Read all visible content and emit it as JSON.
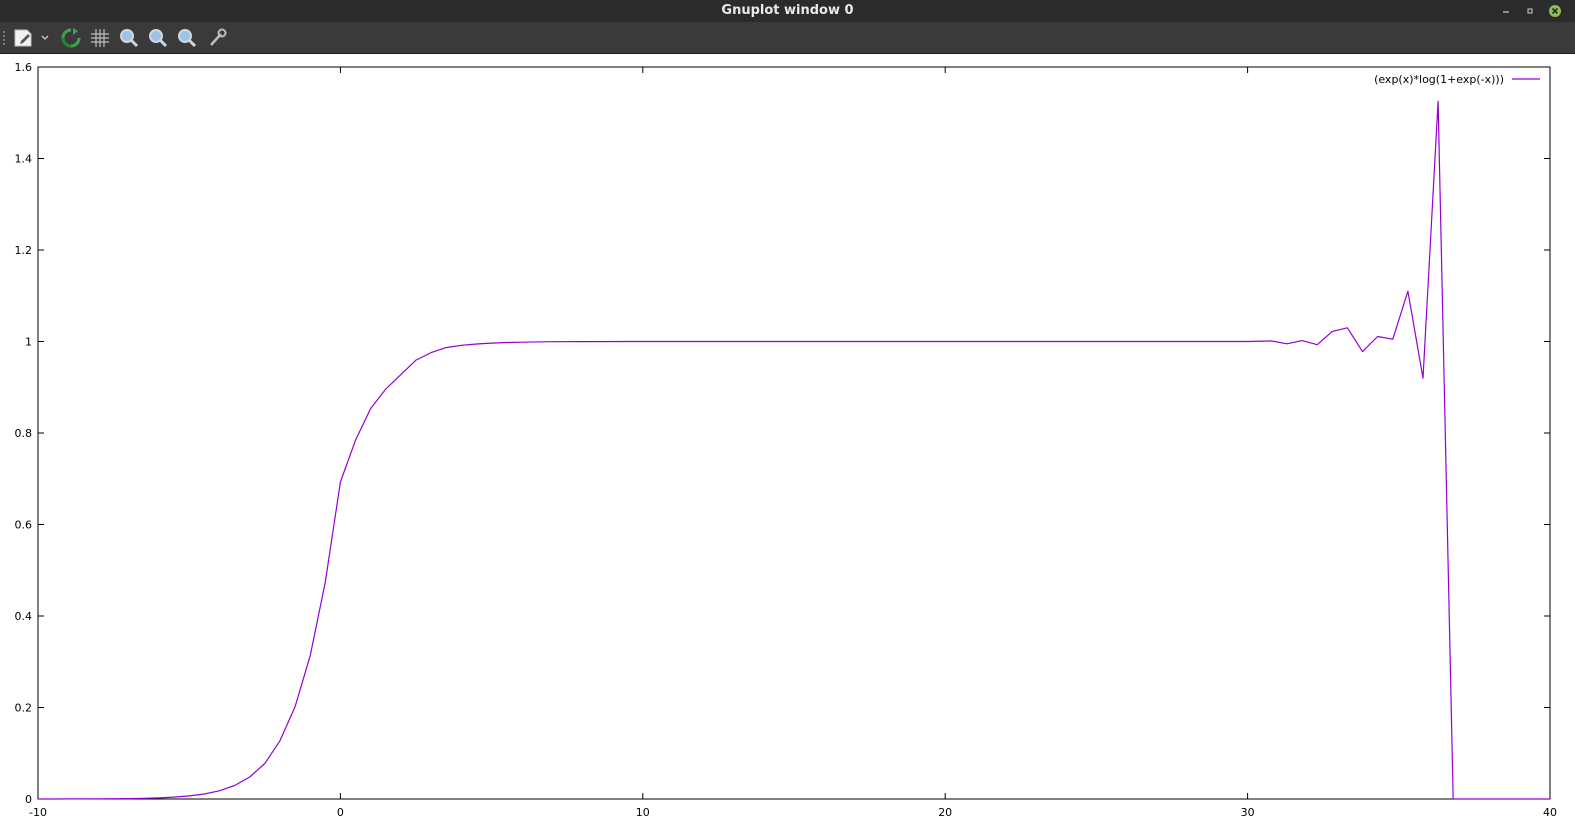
{
  "window": {
    "title": "Gnuplot window 0",
    "controls": [
      "minimize",
      "restore",
      "close"
    ]
  },
  "toolbar": {
    "buttons": [
      {
        "name": "copy-to-clipboard",
        "icon": "clipboard-icon"
      },
      {
        "name": "menu",
        "icon": "chevron-down-icon"
      },
      {
        "name": "replot",
        "icon": "refresh-icon"
      },
      {
        "name": "grid",
        "icon": "grid-icon"
      },
      {
        "name": "previous-zoom",
        "icon": "magnifier-icon"
      },
      {
        "name": "next-zoom",
        "icon": "magnifier-icon"
      },
      {
        "name": "autoscale",
        "icon": "magnifier-icon"
      },
      {
        "name": "settings",
        "icon": "wrench-icon"
      }
    ]
  },
  "colors": {
    "titlebar": "#2b2b2b",
    "toolbar": "#3a3a3a",
    "series": "#9400d3",
    "close": "#8cc152"
  },
  "chart_data": {
    "type": "line",
    "title": "",
    "xlabel": "",
    "ylabel": "",
    "xlim": [
      -10,
      40
    ],
    "ylim": [
      0,
      1.6
    ],
    "x_ticks": [
      "-10",
      "0",
      "10",
      "20",
      "30",
      "40"
    ],
    "y_ticks": [
      "0",
      "0.2",
      "0.4",
      "0.6",
      "0.8",
      "1",
      "1.2",
      "1.4",
      "1.6"
    ],
    "grid": false,
    "legend_position": "top-right",
    "series": [
      {
        "name": "(exp(x)*log(1+exp(-x)))",
        "color": "#9400d3",
        "x": [
          -10,
          -9.5,
          -9,
          -8.5,
          -8,
          -7.5,
          -7,
          -6.5,
          -6,
          -5.5,
          -5,
          -4.5,
          -4,
          -3.5,
          -3,
          -2.5,
          -2,
          -1.5,
          -1,
          -0.5,
          0,
          0.5,
          1,
          1.5,
          2,
          2.5,
          3,
          3.5,
          4,
          4.5,
          5,
          5.5,
          6,
          7,
          8,
          10,
          15,
          20,
          25,
          29,
          30,
          30.8,
          31.3,
          31.8,
          32.3,
          32.8,
          33.3,
          33.8,
          34.3,
          34.8,
          35.3,
          35.8,
          36.3,
          36.8,
          37.3,
          40
        ],
        "y": [
          4.54e-05,
          7.48e-05,
          0.000123,
          0.000203,
          0.000335,
          0.000553,
          0.000911,
          0.0015,
          0.00247,
          0.00407,
          0.0067,
          0.011,
          0.018,
          0.0295,
          0.048,
          0.0776,
          0.1269,
          0.2014,
          0.3133,
          0.474,
          0.693,
          0.784,
          0.8534,
          0.8962,
          0.9277,
          0.9593,
          0.9757,
          0.9867,
          0.9918,
          0.9945,
          0.9966,
          0.9978,
          0.9985,
          0.9995,
          0.9998,
          1.0,
          1.0,
          1.0,
          1.0,
          1.0,
          1.0,
          1.001,
          0.995,
          1.002,
          0.993,
          1.022,
          1.03,
          0.978,
          1.011,
          1.005,
          1.11,
          0.92,
          1.525,
          0,
          0,
          0
        ]
      }
    ]
  }
}
